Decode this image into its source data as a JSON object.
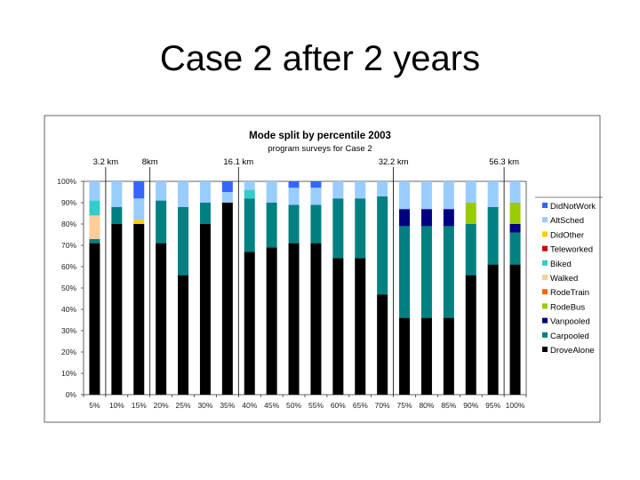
{
  "slide": {
    "title": "Case 2 after 2 years"
  },
  "colors": {
    "DriveAlone": "#FFFFB3",
    "Carpooled": "#008080",
    "Vanpooled": "#000080",
    "RodeBus": "#99CC00",
    "RodeTrain": "#FF6600",
    "Walked": "#FFCC99",
    "Biked": "#33CCCC",
    "Teleworked": "#D00000",
    "DidOther": "#FFCC00",
    "AltSched": "#99CCFF",
    "DidNotWork": "#3366FF"
  },
  "chart_data": {
    "type": "bar",
    "stacked": true,
    "title": "Mode split by percentile 2003",
    "subtitle": "program surveys for Case 2",
    "categories": [
      "5%",
      "10%",
      "15%",
      "20%",
      "25%",
      "30%",
      "35%",
      "40%",
      "45%",
      "50%",
      "55%",
      "60%",
      "65%",
      "70%",
      "75%",
      "80%",
      "85%",
      "90%",
      "95%",
      "100%"
    ],
    "yticks": [
      "0%",
      "10%",
      "20%",
      "30%",
      "40%",
      "50%",
      "60%",
      "70%",
      "80%",
      "90%",
      "100%"
    ],
    "ylim": [
      0,
      100
    ],
    "grid": false,
    "legend_position": "right",
    "distance_markers": [
      {
        "label": "3.2 km",
        "after": "5%"
      },
      {
        "label": "8km",
        "after": "15%"
      },
      {
        "label": "16.1 km",
        "after": "35%"
      },
      {
        "label": "32.2 km",
        "after": "70%"
      },
      {
        "label": "56.3 km",
        "after": "95%"
      }
    ],
    "series": [
      {
        "name": "DroveAlone",
        "values": [
          71,
          80,
          80,
          71,
          56,
          80,
          90,
          67,
          69,
          71,
          71,
          64,
          64,
          47,
          36,
          36,
          36,
          56,
          61,
          61
        ]
      },
      {
        "name": "Carpooled",
        "values": [
          2,
          8,
          0,
          20,
          32,
          10,
          0,
          25,
          21,
          18,
          18,
          28,
          28,
          46,
          43,
          43,
          43,
          24,
          27,
          15
        ]
      },
      {
        "name": "Vanpooled",
        "values": [
          0,
          0,
          0,
          0,
          0,
          0,
          0,
          0,
          0,
          0,
          0,
          0,
          0,
          0,
          8,
          8,
          8,
          0,
          0,
          4
        ]
      },
      {
        "name": "RodeBus",
        "values": [
          0,
          0,
          0,
          0,
          0,
          0,
          0,
          0,
          0,
          0,
          0,
          0,
          0,
          0,
          0,
          0,
          0,
          10,
          0,
          10
        ]
      },
      {
        "name": "RodeTrain",
        "values": [
          0,
          0,
          0,
          0,
          0,
          0,
          0,
          0,
          0,
          0,
          0,
          0,
          0,
          0,
          0,
          0,
          0,
          0,
          0,
          0
        ]
      },
      {
        "name": "Walked",
        "values": [
          11,
          0,
          0,
          0,
          0,
          0,
          0,
          0,
          0,
          0,
          0,
          0,
          0,
          0,
          0,
          0,
          0,
          0,
          0,
          0
        ]
      },
      {
        "name": "Biked",
        "values": [
          7,
          0,
          0,
          0,
          0,
          0,
          0,
          4,
          0,
          0,
          0,
          0,
          0,
          0,
          0,
          0,
          0,
          0,
          0,
          0
        ]
      },
      {
        "name": "Teleworked",
        "values": [
          0,
          0,
          0,
          0,
          0,
          0,
          0,
          0,
          0,
          0,
          0,
          0,
          0,
          0,
          0,
          0,
          0,
          0,
          0,
          0
        ]
      },
      {
        "name": "DidOther",
        "values": [
          0,
          0,
          2,
          0,
          0,
          0,
          0,
          0,
          0,
          0,
          0,
          0,
          0,
          0,
          0,
          0,
          0,
          0,
          0,
          0
        ]
      },
      {
        "name": "AltSched",
        "values": [
          9,
          12,
          10,
          9,
          12,
          10,
          5,
          4,
          10,
          8,
          8,
          8,
          8,
          7,
          13,
          13,
          13,
          10,
          12,
          10
        ]
      },
      {
        "name": "DidNotWork",
        "values": [
          0,
          0,
          8,
          0,
          0,
          0,
          5,
          0,
          0,
          3,
          3,
          0,
          0,
          0,
          0,
          0,
          0,
          0,
          0,
          0
        ]
      }
    ],
    "legend_order": [
      "DidNotWork",
      "AltSched",
      "DidOther",
      "Teleworked",
      "Biked",
      "Walked",
      "RodeTrain",
      "RodeBus",
      "Vanpooled",
      "Carpooled",
      "DroveAlone"
    ],
    "legend_labels": [
      "DidNotWork",
      "AltSched",
      "DidOther",
      "Teleworked",
      "Biked",
      "Walked",
      "RodeTrain",
      "RodeBus",
      "Vanpooled",
      "Carpooled",
      "DroveAlone"
    ]
  }
}
